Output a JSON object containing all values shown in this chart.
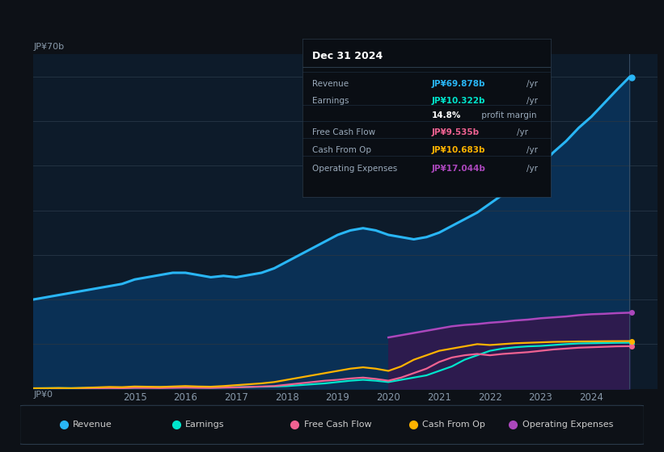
{
  "bg_color": "#0d1117",
  "plot_bg_color": "#0d1b2a",
  "ylabel_top": "JP¥70b",
  "ylabel_bottom": "JP¥0",
  "years": [
    2013.0,
    2013.25,
    2013.5,
    2013.75,
    2014.0,
    2014.25,
    2014.5,
    2014.75,
    2015.0,
    2015.25,
    2015.5,
    2015.75,
    2016.0,
    2016.25,
    2016.5,
    2016.75,
    2017.0,
    2017.25,
    2017.5,
    2017.75,
    2018.0,
    2018.25,
    2018.5,
    2018.75,
    2019.0,
    2019.25,
    2019.5,
    2019.75,
    2020.0,
    2020.25,
    2020.5,
    2020.75,
    2021.0,
    2021.25,
    2021.5,
    2021.75,
    2022.0,
    2022.25,
    2022.5,
    2022.75,
    2023.0,
    2023.25,
    2023.5,
    2023.75,
    2024.0,
    2024.25,
    2024.5,
    2024.75
  ],
  "revenue": [
    20.0,
    20.5,
    21.0,
    21.5,
    22.0,
    22.5,
    23.0,
    23.5,
    24.5,
    25.0,
    25.5,
    26.0,
    26.0,
    25.5,
    25.0,
    25.3,
    25.0,
    25.5,
    26.0,
    27.0,
    28.5,
    30.0,
    31.5,
    33.0,
    34.5,
    35.5,
    36.0,
    35.5,
    34.5,
    34.0,
    33.5,
    34.0,
    35.0,
    36.5,
    38.0,
    39.5,
    41.5,
    43.5,
    46.0,
    48.5,
    50.0,
    53.0,
    55.5,
    58.5,
    61.0,
    64.0,
    67.0,
    69.878
  ],
  "earnings": [
    0.1,
    0.12,
    0.15,
    0.12,
    0.15,
    0.2,
    0.25,
    0.2,
    0.25,
    0.3,
    0.35,
    0.3,
    0.35,
    0.3,
    0.25,
    0.3,
    0.35,
    0.4,
    0.45,
    0.5,
    0.6,
    0.8,
    1.0,
    1.2,
    1.5,
    1.8,
    2.0,
    1.8,
    1.5,
    2.0,
    2.5,
    3.0,
    4.0,
    5.0,
    6.5,
    7.5,
    8.5,
    9.0,
    9.3,
    9.5,
    9.6,
    9.8,
    10.0,
    10.15,
    10.2,
    10.25,
    10.3,
    10.322
  ],
  "free_cash_flow": [
    0.05,
    0.08,
    0.1,
    0.08,
    0.1,
    0.12,
    0.15,
    0.12,
    0.2,
    0.18,
    0.15,
    0.2,
    0.25,
    0.2,
    0.18,
    0.25,
    0.3,
    0.4,
    0.5,
    0.6,
    0.9,
    1.2,
    1.5,
    1.8,
    2.0,
    2.3,
    2.5,
    2.2,
    1.8,
    2.5,
    3.5,
    4.5,
    6.0,
    7.0,
    7.5,
    7.8,
    7.5,
    7.8,
    8.0,
    8.2,
    8.5,
    8.8,
    9.0,
    9.2,
    9.3,
    9.4,
    9.5,
    9.535
  ],
  "cash_from_op": [
    0.1,
    0.12,
    0.15,
    0.12,
    0.2,
    0.3,
    0.4,
    0.35,
    0.5,
    0.45,
    0.4,
    0.5,
    0.6,
    0.5,
    0.45,
    0.6,
    0.8,
    1.0,
    1.2,
    1.5,
    2.0,
    2.5,
    3.0,
    3.5,
    4.0,
    4.5,
    4.8,
    4.5,
    4.0,
    5.0,
    6.5,
    7.5,
    8.5,
    9.0,
    9.5,
    10.0,
    9.8,
    10.0,
    10.2,
    10.3,
    10.4,
    10.5,
    10.55,
    10.6,
    10.62,
    10.65,
    10.67,
    10.683
  ],
  "operating_expenses": [
    0.0,
    0.0,
    0.0,
    0.0,
    0.0,
    0.0,
    0.0,
    0.0,
    0.0,
    0.0,
    0.0,
    0.0,
    0.0,
    0.0,
    0.0,
    0.0,
    0.0,
    0.0,
    0.0,
    0.0,
    0.0,
    0.0,
    0.0,
    0.0,
    0.0,
    0.0,
    0.0,
    0.0,
    11.5,
    12.0,
    12.5,
    13.0,
    13.5,
    14.0,
    14.3,
    14.5,
    14.8,
    15.0,
    15.3,
    15.5,
    15.8,
    16.0,
    16.2,
    16.5,
    16.7,
    16.8,
    16.95,
    17.044
  ],
  "revenue_color": "#29b6f6",
  "earnings_color": "#00e5cc",
  "free_cash_flow_color": "#f06292",
  "cash_from_op_color": "#ffb300",
  "operating_expenses_color": "#ab47bc",
  "revenue_fill_color": "#0a3055",
  "op_exp_fill_color": "#2d1b4e",
  "tooltip_bg": "#0a0e14",
  "tooltip_border": "#2a3a4a",
  "tooltip": {
    "title": "Dec 31 2024",
    "rows": [
      {
        "label": "Revenue",
        "value": "JP¥69.878b",
        "unit": "/yr",
        "color": "#29b6f6"
      },
      {
        "label": "Earnings",
        "value": "JP¥10.322b",
        "unit": "/yr",
        "color": "#00e5cc"
      },
      {
        "label": "",
        "value": "14.8%",
        "unit": " profit margin",
        "color": "white"
      },
      {
        "label": "Free Cash Flow",
        "value": "JP¥9.535b",
        "unit": "/yr",
        "color": "#f06292"
      },
      {
        "label": "Cash From Op",
        "value": "JP¥10.683b",
        "unit": "/yr",
        "color": "#ffb300"
      },
      {
        "label": "Operating Expenses",
        "value": "JP¥17.044b",
        "unit": "/yr",
        "color": "#ab47bc"
      }
    ]
  },
  "legend": [
    {
      "label": "Revenue",
      "color": "#29b6f6"
    },
    {
      "label": "Earnings",
      "color": "#00e5cc"
    },
    {
      "label": "Free Cash Flow",
      "color": "#f06292"
    },
    {
      "label": "Cash From Op",
      "color": "#ffb300"
    },
    {
      "label": "Operating Expenses",
      "color": "#ab47bc"
    }
  ],
  "xtick_years": [
    2015,
    2016,
    2017,
    2018,
    2019,
    2020,
    2021,
    2022,
    2023,
    2024
  ],
  "ylim": [
    0,
    75
  ],
  "xlim_start": 2013.0,
  "xlim_end": 2025.3
}
